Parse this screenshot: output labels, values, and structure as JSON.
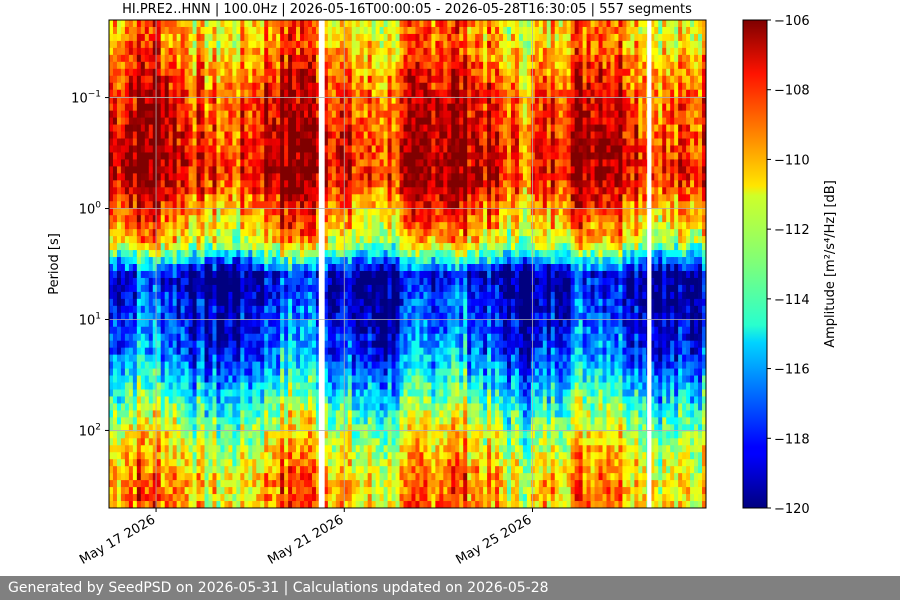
{
  "chart_data": {
    "type": "heatmap",
    "title": "HI.PRE2..HNN | 100.0Hz | 2026-05-16T00:00:05 - 2026-05-28T16:30:05 | 557 segments",
    "ylabel": "Period [s]",
    "colorbar_label": "Amplitude [m²/s⁴/Hz] [dB]",
    "xlim": [
      "2026-05-16T00:00:05",
      "2026-05-28T16:30:05"
    ],
    "x_ticks": [
      {
        "date": "2026-05-17",
        "label": "May 17 2026"
      },
      {
        "date": "2026-05-21",
        "label": "May 21 2026"
      },
      {
        "date": "2026-05-25",
        "label": "May 25 2026"
      }
    ],
    "y_scale": "log",
    "y_inverted": true,
    "ylim": [
      0.02,
      500
    ],
    "y_ticks": [
      {
        "value": 0.1,
        "base": "10",
        "exp": "−1"
      },
      {
        "value": 1,
        "base": "10",
        "exp": "0"
      },
      {
        "value": 10,
        "base": "10",
        "exp": "1"
      },
      {
        "value": 100,
        "base": "10",
        "exp": "2"
      }
    ],
    "grid": true,
    "colormap": "jet",
    "color_range": [
      -120,
      -106
    ],
    "colorbar_ticks": [
      {
        "value": -106,
        "label": "−106"
      },
      {
        "value": -108,
        "label": "−108"
      },
      {
        "value": -110,
        "label": "−110"
      },
      {
        "value": -112,
        "label": "−112"
      },
      {
        "value": -114,
        "label": "−114"
      },
      {
        "value": -116,
        "label": "−116"
      },
      {
        "value": -118,
        "label": "−118"
      },
      {
        "value": -120,
        "label": "−120"
      }
    ],
    "gaps": [
      [
        "2026-05-20T11:00",
        "2026-05-20T14:00"
      ],
      [
        "2026-05-27T10:30",
        "2026-05-27T12:40"
      ]
    ],
    "profile_by_period": [
      {
        "period_s": 0.03,
        "db": -110
      },
      {
        "period_s": 0.1,
        "db": -108
      },
      {
        "period_s": 0.5,
        "db": -107
      },
      {
        "period_s": 2.0,
        "db": -111
      },
      {
        "period_s": 4.0,
        "db": -119
      },
      {
        "period_s": 20.0,
        "db": -117
      },
      {
        "period_s": 100.0,
        "db": -112
      },
      {
        "period_s": 300.0,
        "db": -110
      }
    ]
  },
  "footer": {
    "text": "Generated by SeedPSD on 2026-05-31 | Calculations updated on 2026-05-28"
  }
}
